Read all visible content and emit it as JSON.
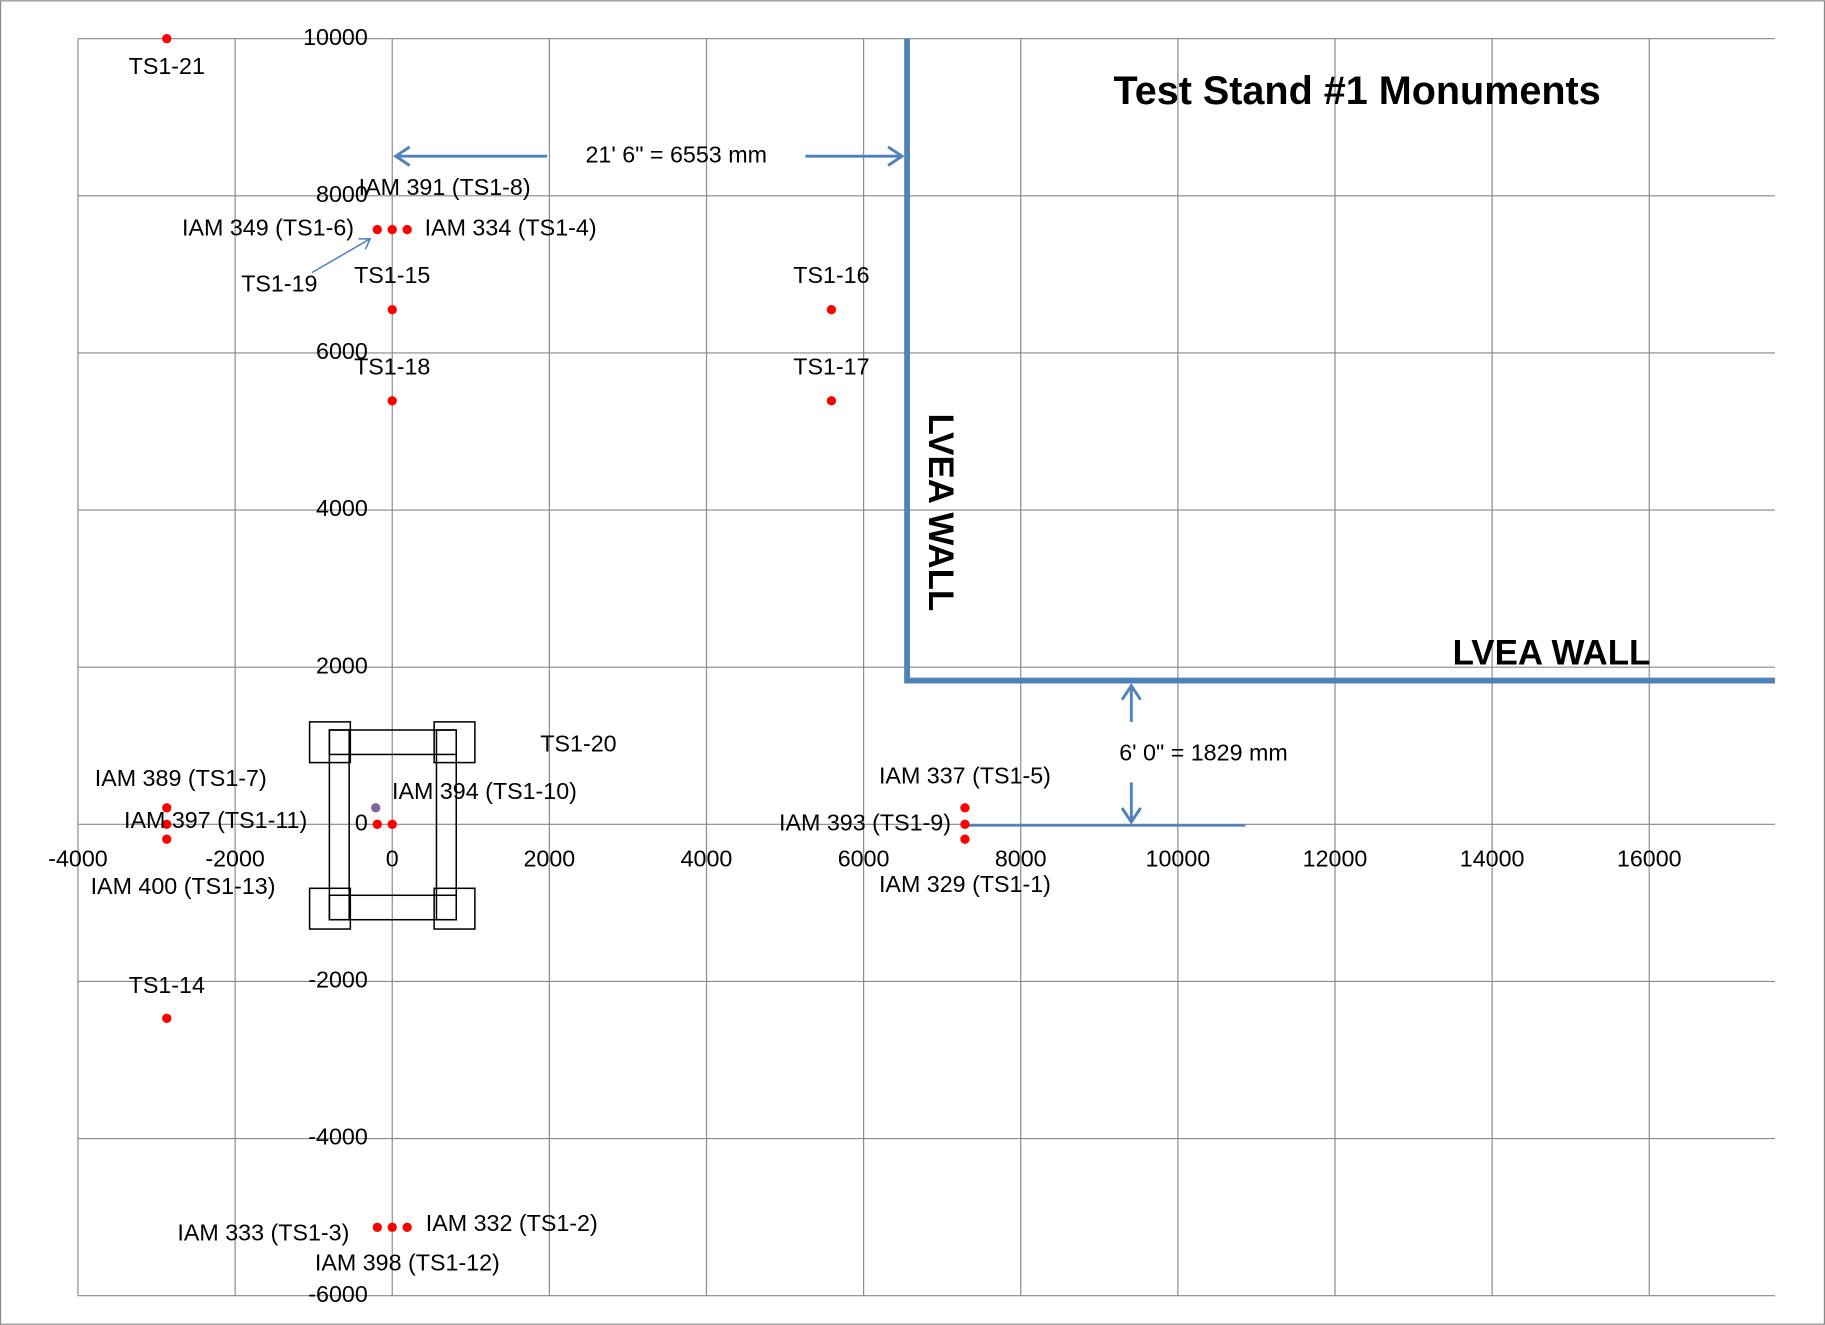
{
  "chart_data": {
    "type": "scatter",
    "title": "Test Stand #1 Monuments",
    "xlim": [
      -4000,
      17600
    ],
    "ylim": [
      -6000,
      10000
    ],
    "xticks": [
      -4000,
      -2000,
      0,
      2000,
      4000,
      6000,
      8000,
      10000,
      12000,
      14000,
      16000
    ],
    "yticks": [
      -6000,
      -4000,
      -2000,
      0,
      2000,
      4000,
      6000,
      8000,
      10000
    ],
    "grid": true,
    "series": [
      {
        "color": "#ff0000",
        "x": [
          -2870,
          -190,
          0,
          190,
          0,
          0,
          5590,
          5590,
          -2870,
          -2870,
          -2870,
          -190,
          0,
          -2870,
          -190,
          0,
          190,
          7290,
          7290,
          7290
        ],
        "values": [
          10000,
          7570,
          7570,
          7570,
          6550,
          5390,
          6550,
          5390,
          210,
          0,
          -190,
          0,
          0,
          -2470,
          -5130,
          -5130,
          -5130,
          210,
          0,
          -190
        ],
        "labels": [
          "TS1-21",
          "IAM 349 (TS1-6)",
          "IAM 391 (TS1-8)",
          "IAM 334 (TS1-4)",
          "TS1-15",
          "TS1-18",
          "TS1-16",
          "TS1-17",
          "IAM 389 (TS1-7)",
          "IAM 397 (TS1-11)",
          "IAM 400 (TS1-13)",
          null,
          null,
          "TS1-14",
          "IAM 333 (TS1-3)",
          "IAM 398 (TS1-12)",
          "IAM 332 (TS1-2)",
          "IAM 337 (TS1-5)",
          "IAM 393 (TS1-9)",
          "IAM 329 (TS1-1)"
        ]
      },
      {
        "color": "#8064a2",
        "x": [
          -210
        ],
        "values": [
          210
        ],
        "labels": [
          "IAM 394 (TS1-10)"
        ]
      }
    ],
    "wall": {
      "color": "#4f81bd",
      "x": [
        6553,
        6553,
        17600
      ],
      "values": [
        10000,
        1829,
        1829
      ],
      "labels": [
        "LVEA WALL",
        "LVEA WALL"
      ]
    },
    "annotations": [
      "21' 6\" = 6553 mm",
      "6' 0\" = 1829 mm",
      "TS1-19",
      "TS1-20"
    ]
  }
}
